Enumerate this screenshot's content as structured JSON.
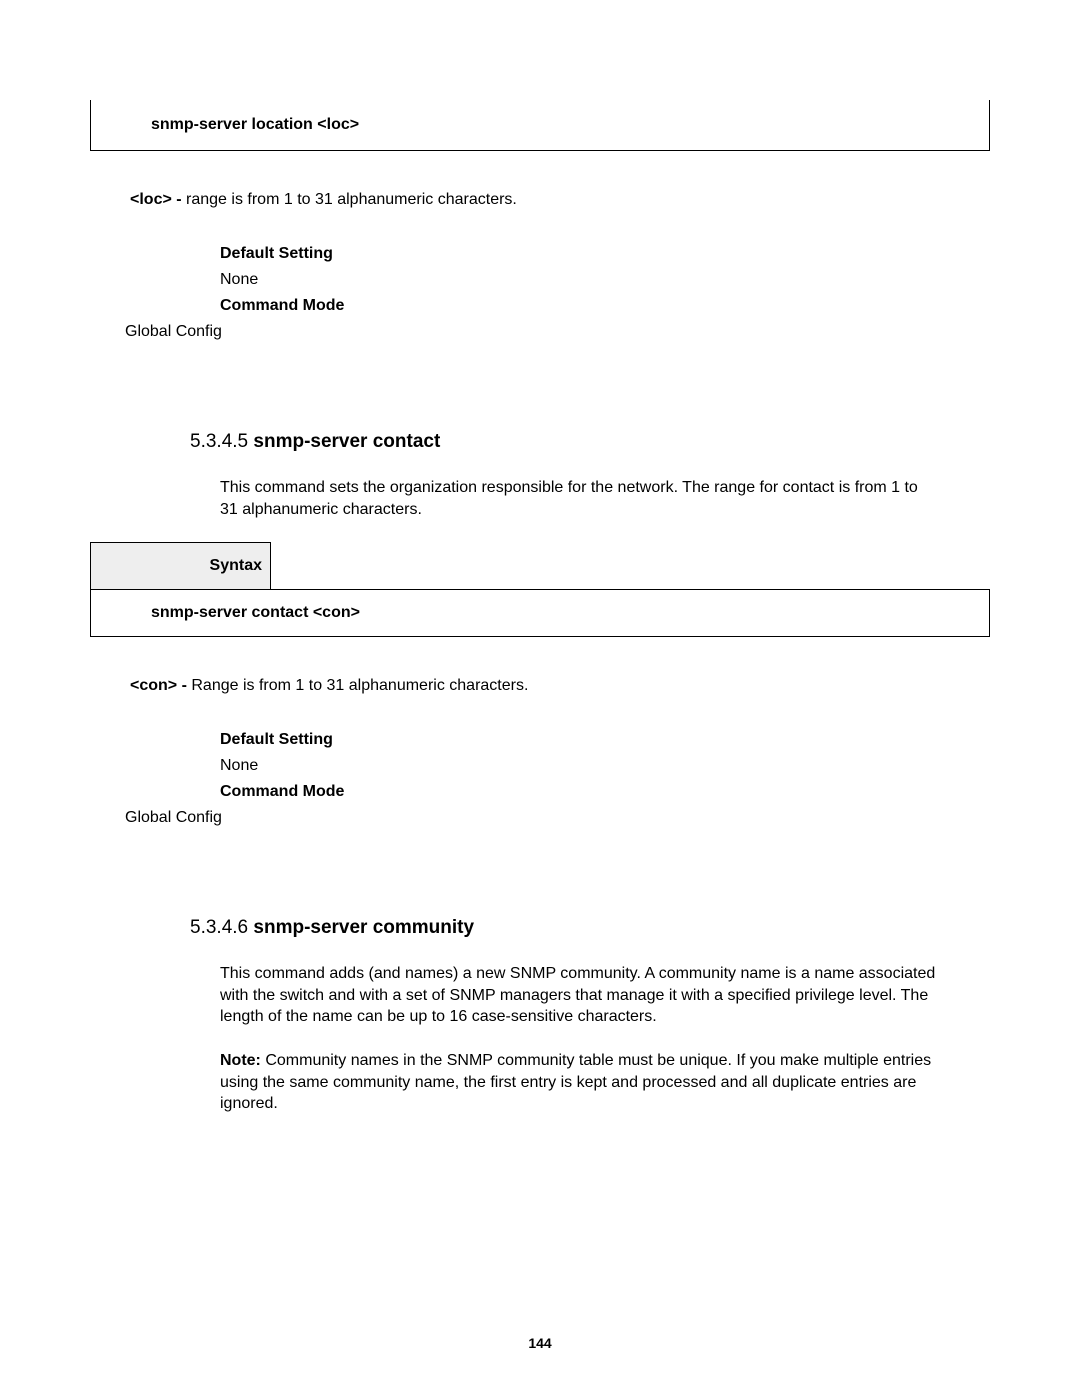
{
  "colors": {
    "background": "#ffffff",
    "text": "#000000",
    "border": "#000000",
    "syntax_header_bg": "#eeeeee"
  },
  "typography": {
    "body_fontsize": 16,
    "heading_fontsize": 19,
    "pagenum_fontsize": 14
  },
  "top_command_box": "snmp-server location <loc>",
  "loc_param": {
    "name": "<loc>",
    "sep": " - ",
    "desc": "range is from 1 to 31 alphanumeric characters."
  },
  "settings1": {
    "default_label": "Default Setting",
    "default_value": "None",
    "cmdmode_label": "Command Mode",
    "cmdmode_value": "Global Config"
  },
  "section_contact": {
    "number": "5.3.4.5",
    "title": "snmp-server contact",
    "description": "This command sets the organization responsible for the network. The range for contact is from 1 to 31 alphanumeric characters.",
    "syntax_label": "Syntax",
    "syntax_body": "snmp-server contact <con>",
    "param": {
      "name": "<con>",
      "sep": " - ",
      "desc": "Range is from 1 to 31 alphanumeric characters."
    },
    "settings": {
      "default_label": "Default Setting",
      "default_value": "None",
      "cmdmode_label": "Command Mode",
      "cmdmode_value": "Global Config"
    }
  },
  "section_community": {
    "number": "5.3.4.6",
    "title": "snmp-server community",
    "description": "This command adds (and names) a new SNMP community. A community name is a name associated with the switch and with a set of SNMP managers that manage it with a specified privilege level. The length of the name can be up to 16 case-sensitive characters.",
    "note_label": "Note:",
    "note_body": "Community names in the SNMP community table must be unique. If you make multiple entries using the same community name, the first entry is kept and processed and all duplicate entries are ignored."
  },
  "page_number": "144"
}
